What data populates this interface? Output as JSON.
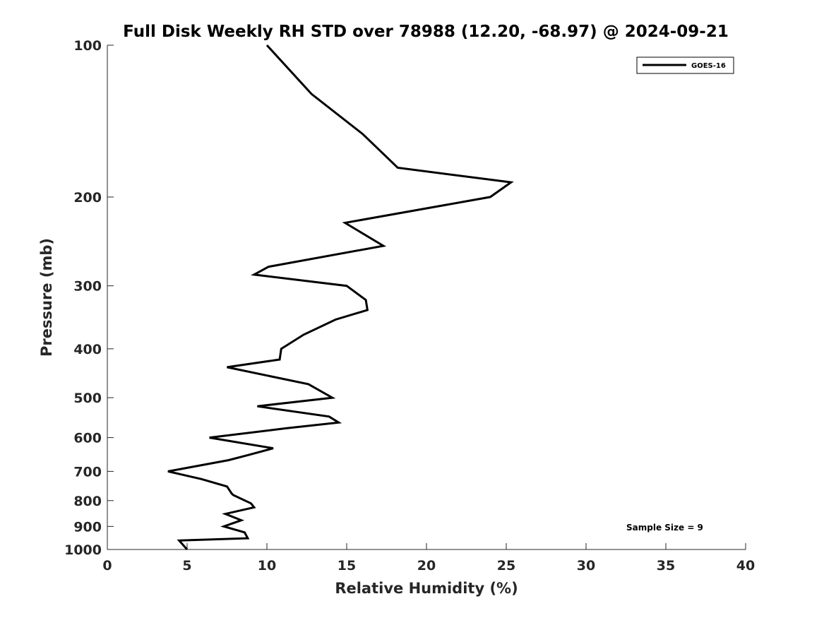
{
  "chart_data": {
    "type": "line",
    "title": "Full Disk Weekly RH STD over 78988 (12.20, -68.97) @ 2024-09-21",
    "xlabel": "Relative Humidity (%)",
    "ylabel": "Pressure (mb)",
    "xlim": [
      0,
      40
    ],
    "ylim": [
      100,
      1000
    ],
    "yscale": "log",
    "y_reversed": true,
    "grid": false,
    "legend_position": "top-right",
    "x_ticks": [
      "0",
      "5",
      "10",
      "15",
      "20",
      "25",
      "30",
      "35",
      "40"
    ],
    "y_ticks": [
      "100",
      "200",
      "300",
      "400",
      "500",
      "600",
      "700",
      "800",
      "900",
      "1000"
    ],
    "annotation": "Sample Size = 9",
    "series": [
      {
        "name": "GOES-16",
        "color": "#000000",
        "points": [
          [
            10.0,
            100
          ],
          [
            12.8,
            125
          ],
          [
            16.0,
            150
          ],
          [
            18.2,
            175
          ],
          [
            25.3,
            187
          ],
          [
            24.0,
            200
          ],
          [
            14.9,
            225
          ],
          [
            17.3,
            250
          ],
          [
            10.1,
            275
          ],
          [
            9.2,
            285
          ],
          [
            15.0,
            300
          ],
          [
            16.2,
            320
          ],
          [
            16.3,
            335
          ],
          [
            14.3,
            350
          ],
          [
            12.3,
            375
          ],
          [
            10.9,
            400
          ],
          [
            10.8,
            420
          ],
          [
            7.5,
            435
          ],
          [
            12.6,
            470
          ],
          [
            14.1,
            500
          ],
          [
            9.4,
            520
          ],
          [
            13.9,
            545
          ],
          [
            14.5,
            560
          ],
          [
            11.2,
            575
          ],
          [
            6.4,
            600
          ],
          [
            10.4,
            630
          ],
          [
            8.8,
            650
          ],
          [
            7.6,
            665
          ],
          [
            3.8,
            700
          ],
          [
            5.9,
            725
          ],
          [
            7.5,
            750
          ],
          [
            7.8,
            775
          ],
          [
            7.9,
            780
          ],
          [
            9.0,
            810
          ],
          [
            9.2,
            825
          ],
          [
            7.4,
            850
          ],
          [
            8.4,
            875
          ],
          [
            7.3,
            900
          ],
          [
            8.6,
            925
          ],
          [
            8.8,
            950
          ],
          [
            4.5,
            960
          ],
          [
            5.0,
            1000
          ]
        ]
      }
    ]
  }
}
